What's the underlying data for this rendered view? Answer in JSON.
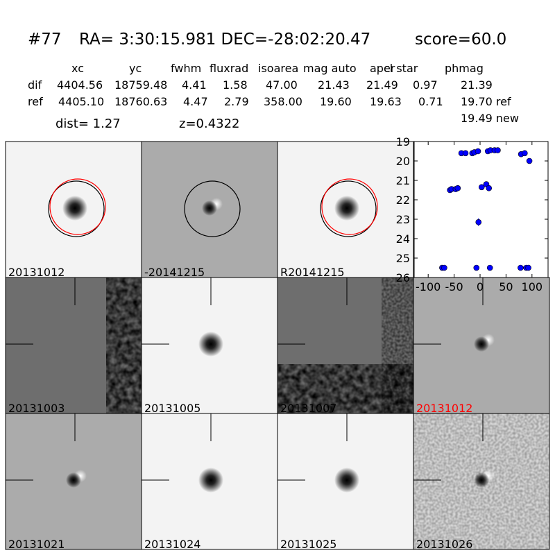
{
  "header": {
    "id": "#77",
    "coords": "RA= 3:30:15.981 DEC=-28:02:20.47",
    "score": "score=60.0"
  },
  "table": {
    "columns": [
      "xc",
      "yc",
      "fwhm",
      "fluxrad",
      "isoarea",
      "mag auto",
      "aper",
      "cl star",
      "phmag"
    ],
    "rows": [
      [
        "dif",
        "4404.56",
        "18759.48",
        "4.41",
        "1.58",
        "47.00",
        "21.43",
        "21.49",
        "0.97",
        "21.39"
      ],
      [
        "ref",
        "4405.10",
        "18760.63",
        "4.47",
        "2.79",
        "358.00",
        "19.60",
        "19.63",
        "0.71",
        "19.70 ref"
      ]
    ],
    "extra": "19.49 new"
  },
  "dist": "dist=  1.27",
  "z": "z=0.4322",
  "stamps": [
    {
      "label": "20131012",
      "color": "#000000"
    },
    {
      "label": "-20141215",
      "color": "#000000"
    },
    {
      "label": "R20141215",
      "color": "#000000"
    },
    {
      "label": "20131003",
      "color": "#000000"
    },
    {
      "label": "20131005",
      "color": "#000000"
    },
    {
      "label": "20131007",
      "color": "#000000"
    },
    {
      "label": "20131012",
      "color": "#ff0000"
    },
    {
      "label": "20131021",
      "color": "#000000"
    },
    {
      "label": "20131024",
      "color": "#000000"
    },
    {
      "label": "20131025",
      "color": "#000000"
    },
    {
      "label": "20131026",
      "color": "#000000"
    }
  ],
  "chart_data": {
    "type": "scatter",
    "color": "#0000ff",
    "x": [
      -73,
      -69,
      -58,
      -55,
      -47,
      -43,
      -36,
      -28,
      -15,
      -11,
      -4,
      -7,
      -3,
      3,
      12,
      17,
      15,
      20,
      28,
      34,
      19,
      79,
      86,
      78,
      89,
      93,
      95
    ],
    "values": [
      25.5,
      25.5,
      21.5,
      21.45,
      21.45,
      21.4,
      19.6,
      19.6,
      19.6,
      19.55,
      19.5,
      25.5,
      23.15,
      21.35,
      21.2,
      21.4,
      19.5,
      19.45,
      19.45,
      19.45,
      25.5,
      19.65,
      19.6,
      25.5,
      25.5,
      25.5,
      20.0
    ],
    "errors": [
      0.05,
      0.05,
      0.05,
      0.05,
      0.05,
      0.05,
      0.05,
      0.05,
      0.05,
      0.05,
      0.05,
      0.05,
      0.2,
      0.05,
      0.05,
      0.05,
      0.05,
      0.05,
      0.05,
      0.05,
      0.05,
      0.05,
      0.05,
      0.05,
      0.05,
      0.05,
      0.05
    ],
    "xlim": [
      -127,
      131
    ],
    "ylim": [
      26,
      19
    ],
    "xticks": [
      -100,
      -50,
      0,
      50,
      100
    ],
    "yticks": [
      19,
      20,
      21,
      22,
      23,
      24,
      25,
      26
    ]
  }
}
